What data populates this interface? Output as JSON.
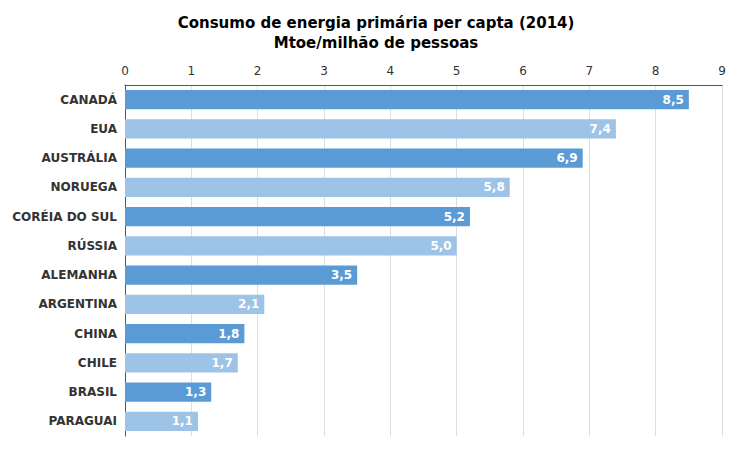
{
  "chart_data": {
    "type": "bar",
    "orientation": "horizontal",
    "title": "Consumo de energia primária per capta (2014)\nMtoe/milhão de pessoas",
    "categories": [
      "CANADÁ",
      "EUA",
      "AUSTRÁLIA",
      "NORUEGA",
      "CORÉIA DO SUL",
      "RÚSSIA",
      "ALEMANHA",
      "ARGENTINA",
      "CHINA",
      "CHILE",
      "BRASIL",
      "PARAGUAI"
    ],
    "values": [
      8.5,
      7.4,
      6.9,
      5.8,
      5.2,
      5.0,
      3.5,
      2.1,
      1.8,
      1.7,
      1.3,
      1.1
    ],
    "value_labels": [
      "8,5",
      "7,4",
      "6,9",
      "5,8",
      "5,2",
      "5,0",
      "3,5",
      "2,1",
      "1,8",
      "1,7",
      "1,3",
      "1,1"
    ],
    "data_labels": true,
    "colors": [
      "#5b9bd5",
      "#9dc3e6",
      "#5b9bd5",
      "#9dc3e6",
      "#5b9bd5",
      "#9dc3e6",
      "#5b9bd5",
      "#9dc3e6",
      "#5b9bd5",
      "#9dc3e6",
      "#5b9bd5",
      "#9dc3e6"
    ],
    "xlim": [
      0,
      9
    ],
    "xticks": [
      0,
      1,
      2,
      3,
      4,
      5,
      6,
      7,
      8,
      9
    ],
    "grid": true
  }
}
